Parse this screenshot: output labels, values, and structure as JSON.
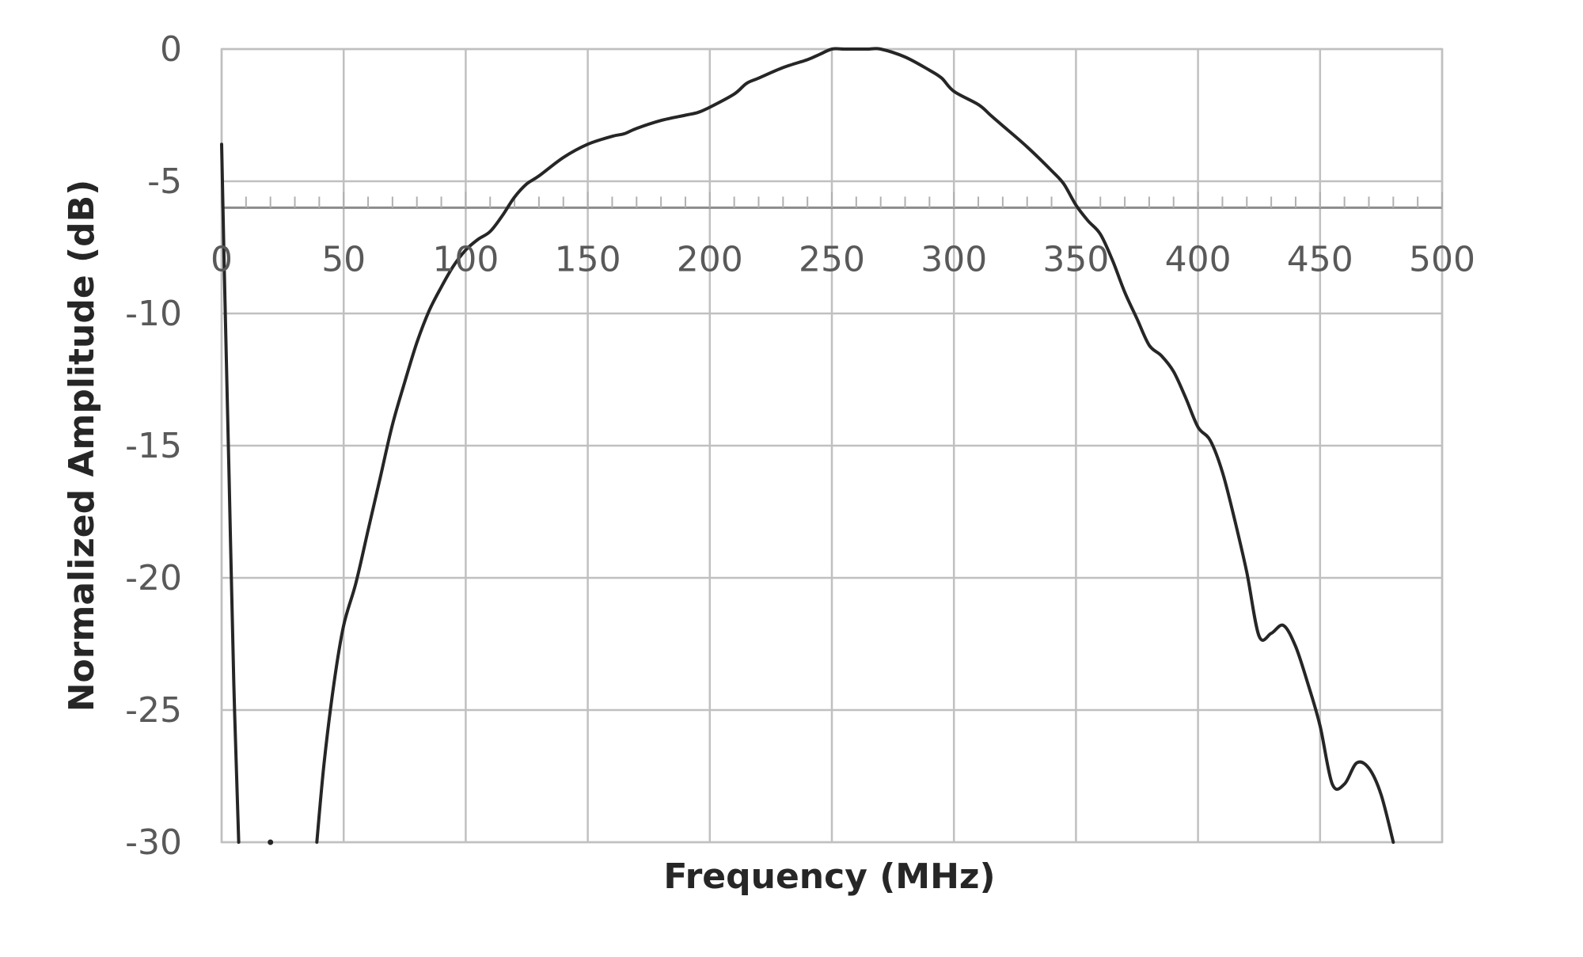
{
  "chart_data": {
    "type": "line",
    "title": "",
    "xlabel": "Frequency (MHz)",
    "ylabel": "Normalized Amplitude (dB)",
    "xlim": [
      0,
      500
    ],
    "ylim": [
      -30,
      0
    ],
    "x_ticks": [
      "0",
      "50",
      "100",
      "150",
      "200",
      "250",
      "300",
      "350",
      "400",
      "450",
      "500"
    ],
    "y_ticks": [
      "0",
      "-5",
      "-10",
      "-15",
      "-20",
      "-25",
      "-30"
    ],
    "x_axis_crosses_y_at": -6,
    "grid": true,
    "legend": "none",
    "line_color": "#262626",
    "series": [
      {
        "x": [
          0,
          1,
          3,
          5,
          7
        ],
        "y": [
          -3.6,
          -8,
          -16,
          -24,
          -30
        ]
      },
      {
        "x": [
          39,
          42,
          46,
          50,
          55,
          60,
          65,
          70,
          75,
          80,
          85,
          90,
          95,
          100,
          105,
          110,
          115,
          120,
          125,
          130,
          140,
          150,
          160,
          165,
          170,
          180,
          190,
          195,
          200,
          210,
          215,
          220,
          230,
          240,
          245,
          250,
          255,
          260,
          265,
          270,
          280,
          290,
          295,
          300,
          310,
          315,
          320,
          330,
          340,
          345,
          350,
          355,
          360,
          365,
          370,
          375,
          380,
          385,
          390,
          395,
          400,
          405,
          410,
          415,
          420,
          425,
          430,
          435,
          440,
          445,
          450,
          455,
          460,
          465,
          470,
          475,
          480
        ],
        "y": [
          -30,
          -27,
          -24,
          -21.8,
          -20.2,
          -18.2,
          -16.2,
          -14.2,
          -12.6,
          -11.1,
          -9.9,
          -9,
          -8.2,
          -7.6,
          -7.2,
          -6.9,
          -6.3,
          -5.6,
          -5.1,
          -4.8,
          -4.1,
          -3.6,
          -3.3,
          -3.2,
          -3.0,
          -2.7,
          -2.5,
          -2.4,
          -2.2,
          -1.7,
          -1.3,
          -1.1,
          -0.7,
          -0.4,
          -0.2,
          0,
          0,
          0,
          0,
          0,
          -0.3,
          -0.8,
          -1.1,
          -1.6,
          -2.1,
          -2.5,
          -2.9,
          -3.7,
          -4.6,
          -5.1,
          -5.9,
          -6.5,
          -7,
          -8,
          -9.2,
          -10.2,
          -11.2,
          -11.6,
          -12.2,
          -13.2,
          -14.3,
          -14.8,
          -16,
          -17.8,
          -19.8,
          -22.2,
          -22.1,
          -21.8,
          -22.6,
          -24,
          -25.6,
          -27.8,
          -27.8,
          -27.0,
          -27.2,
          -28.2,
          -30
        ]
      }
    ],
    "marker_points": [
      {
        "x": 20,
        "y": -30
      }
    ]
  }
}
